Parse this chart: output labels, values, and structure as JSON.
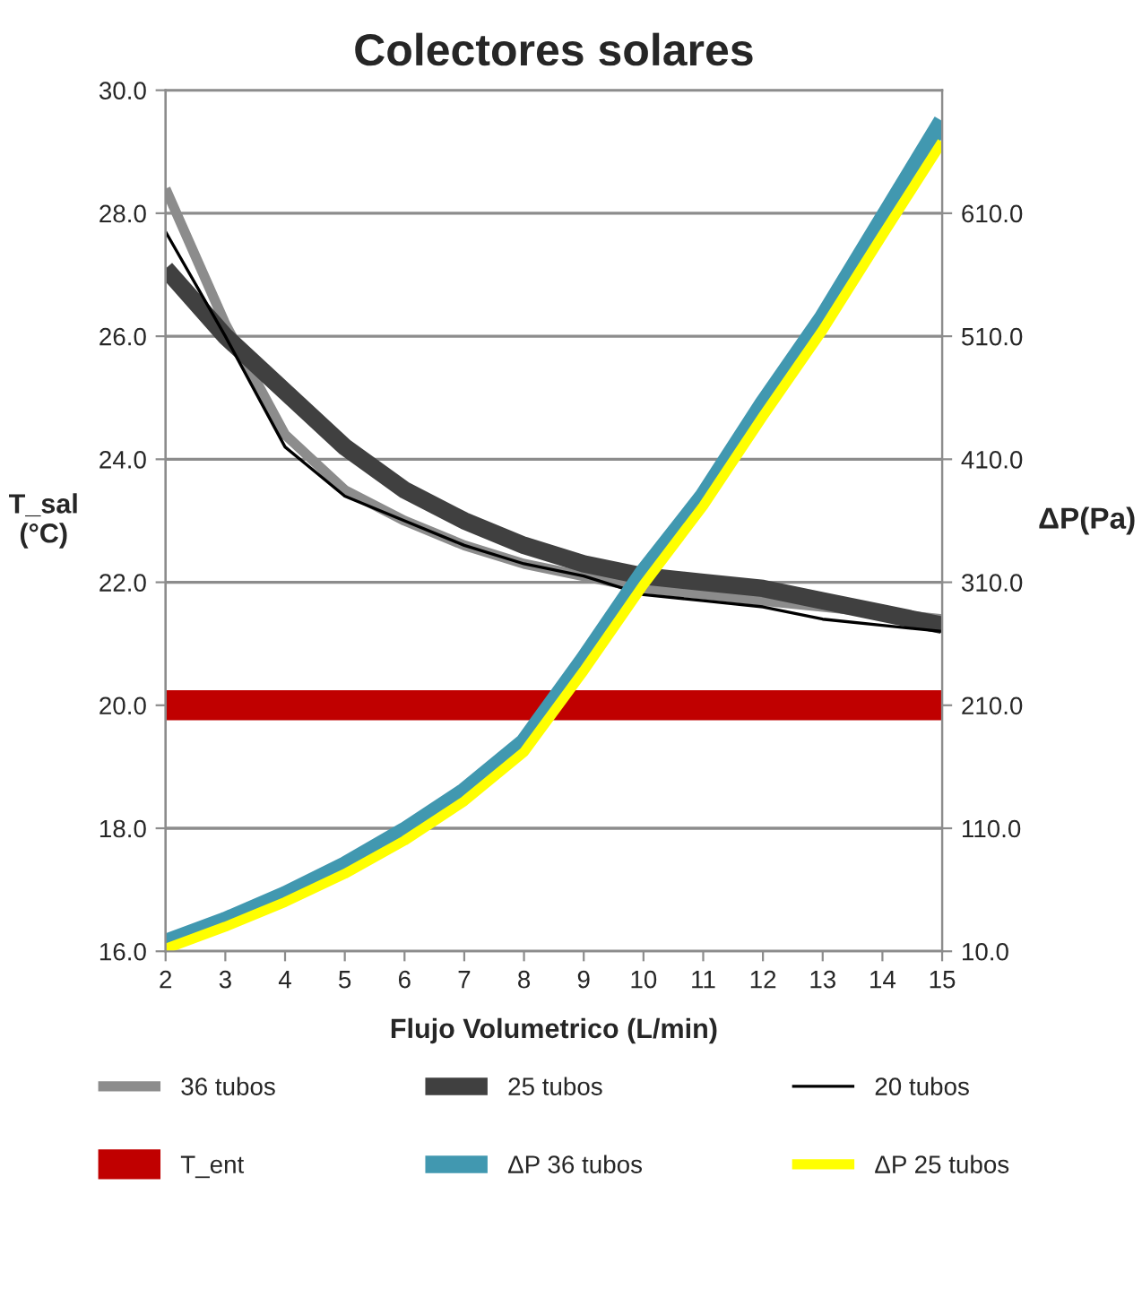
{
  "chart_data": {
    "type": "line",
    "title": "Colectores solares",
    "xlabel": "Flujo Volumetrico (L/min)",
    "ylabel": "T_sal\n(°C)",
    "y2label": "ΔP(Pa)",
    "x": [
      2,
      3,
      4,
      5,
      6,
      7,
      8,
      9,
      10,
      11,
      12,
      13,
      14,
      15
    ],
    "series": [
      {
        "name": "36 tubos",
        "color": "#8c8c8c",
        "values": [
          28.4,
          26.2,
          24.4,
          23.5,
          23.0,
          22.6,
          22.3,
          22.1,
          21.9,
          21.8,
          21.7,
          21.6,
          21.5,
          21.4
        ]
      },
      {
        "name": "25 tubos",
        "color": "#404040",
        "values": [
          27.1,
          26.0,
          25.1,
          24.2,
          23.5,
          23.0,
          22.6,
          22.3,
          22.1,
          22.0,
          21.9,
          21.7,
          21.5,
          21.3
        ]
      },
      {
        "name": "20 tubos",
        "color": "#000000",
        "values": [
          27.7,
          26.0,
          24.2,
          23.4,
          23.0,
          22.6,
          22.3,
          22.1,
          21.8,
          21.7,
          21.6,
          21.4,
          21.3,
          21.2
        ]
      },
      {
        "name": "T_ent",
        "color": "#c00000",
        "values": [
          20.0,
          20.0,
          20.0,
          20.0,
          20.0,
          20.0,
          20.0,
          20.0,
          20.0,
          20.0,
          20.0,
          20.0,
          20.0,
          20.0
        ]
      },
      {
        "name": "ΔP 36 tubos",
        "color": "#4198b0",
        "axis": "y2",
        "values": [
          17,
          35,
          56,
          80,
          108,
          140,
          180,
          247,
          318,
          380,
          455,
          525,
          605,
          685
        ]
      },
      {
        "name": "ΔP 25 tubos",
        "color": "#ffff00",
        "axis": "y2",
        "values": [
          12,
          30,
          50,
          73,
          100,
          132,
          172,
          238,
          308,
          372,
          445,
          515,
          592,
          668
        ]
      }
    ],
    "xlim": [
      2,
      15
    ],
    "xticks": [
      2,
      3,
      4,
      5,
      6,
      7,
      8,
      9,
      10,
      11,
      12,
      13,
      14,
      15
    ],
    "ylim": [
      16,
      30
    ],
    "yticks": [
      {
        "value": 16,
        "label": "16.0"
      },
      {
        "value": 18,
        "label": "18.0"
      },
      {
        "value": 20,
        "label": "20.0"
      },
      {
        "value": 22,
        "label": "22.0"
      },
      {
        "value": 24,
        "label": "24.0"
      },
      {
        "value": 26,
        "label": "26.0"
      },
      {
        "value": 28,
        "label": "28.0"
      },
      {
        "value": 30,
        "label": "30.0"
      }
    ],
    "y2lim": [
      10,
      710
    ],
    "y2ticks": [
      {
        "value": 10,
        "label": "10.0"
      },
      {
        "value": 110,
        "label": "110.0"
      },
      {
        "value": 210,
        "label": "210.0"
      },
      {
        "value": 310,
        "label": "310.0"
      },
      {
        "value": 410,
        "label": "410.0"
      },
      {
        "value": 510,
        "label": "510.0"
      },
      {
        "value": 610,
        "label": "610.0"
      }
    ],
    "grid": "y",
    "legend": "bottom",
    "marker": "none",
    "line_style": "solid"
  }
}
